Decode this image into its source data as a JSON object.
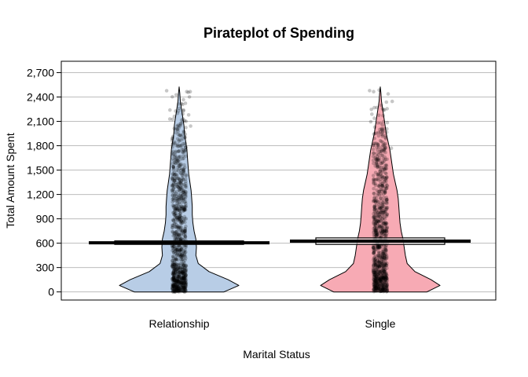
{
  "chart_data": {
    "type": "pirateplot",
    "title": "Pirateplot of Spending",
    "xlabel": "Marital Status",
    "ylabel": "Total Amount Spent",
    "ylim": [
      -100,
      2840
    ],
    "yticks": [
      0,
      300,
      600,
      900,
      1200,
      1500,
      1800,
      2100,
      2400,
      2700
    ],
    "ytick_labels": [
      "0",
      "300",
      "600",
      "900",
      "1,200",
      "1,500",
      "1,800",
      "2,100",
      "2,400",
      "2,700"
    ],
    "grid": true,
    "categories": [
      "Relationship",
      "Single"
    ],
    "series": [
      {
        "category": "Relationship",
        "color": "#b8cde6",
        "mean": 605,
        "ci": [
          585,
          628
        ],
        "max": 2525,
        "density": [
          [
            0,
            0.75
          ],
          [
            80,
            1.0
          ],
          [
            150,
            0.82
          ],
          [
            250,
            0.5
          ],
          [
            350,
            0.32
          ],
          [
            450,
            0.28
          ],
          [
            550,
            0.29
          ],
          [
            650,
            0.28
          ],
          [
            750,
            0.25
          ],
          [
            850,
            0.23
          ],
          [
            950,
            0.22
          ],
          [
            1050,
            0.22
          ],
          [
            1150,
            0.21
          ],
          [
            1250,
            0.2
          ],
          [
            1350,
            0.18
          ],
          [
            1450,
            0.16
          ],
          [
            1550,
            0.15
          ],
          [
            1650,
            0.14
          ],
          [
            1750,
            0.13
          ],
          [
            1850,
            0.11
          ],
          [
            1950,
            0.09
          ],
          [
            2050,
            0.08
          ],
          [
            2150,
            0.06
          ],
          [
            2250,
            0.04
          ],
          [
            2350,
            0.02
          ],
          [
            2450,
            0.01
          ],
          [
            2525,
            0.0
          ]
        ]
      },
      {
        "category": "Single",
        "color": "#f7aab4",
        "mean": 625,
        "ci": [
          585,
          665
        ],
        "max": 2525,
        "density": [
          [
            0,
            0.78
          ],
          [
            80,
            1.0
          ],
          [
            150,
            0.85
          ],
          [
            250,
            0.58
          ],
          [
            350,
            0.45
          ],
          [
            450,
            0.42
          ],
          [
            550,
            0.4
          ],
          [
            650,
            0.38
          ],
          [
            750,
            0.35
          ],
          [
            850,
            0.33
          ],
          [
            950,
            0.32
          ],
          [
            1050,
            0.31
          ],
          [
            1150,
            0.3
          ],
          [
            1250,
            0.28
          ],
          [
            1350,
            0.25
          ],
          [
            1450,
            0.22
          ],
          [
            1550,
            0.2
          ],
          [
            1650,
            0.18
          ],
          [
            1750,
            0.16
          ],
          [
            1850,
            0.13
          ],
          [
            1950,
            0.1
          ],
          [
            2050,
            0.08
          ],
          [
            2150,
            0.06
          ],
          [
            2250,
            0.04
          ],
          [
            2350,
            0.02
          ],
          [
            2450,
            0.01
          ],
          [
            2525,
            0.0
          ]
        ]
      }
    ]
  }
}
